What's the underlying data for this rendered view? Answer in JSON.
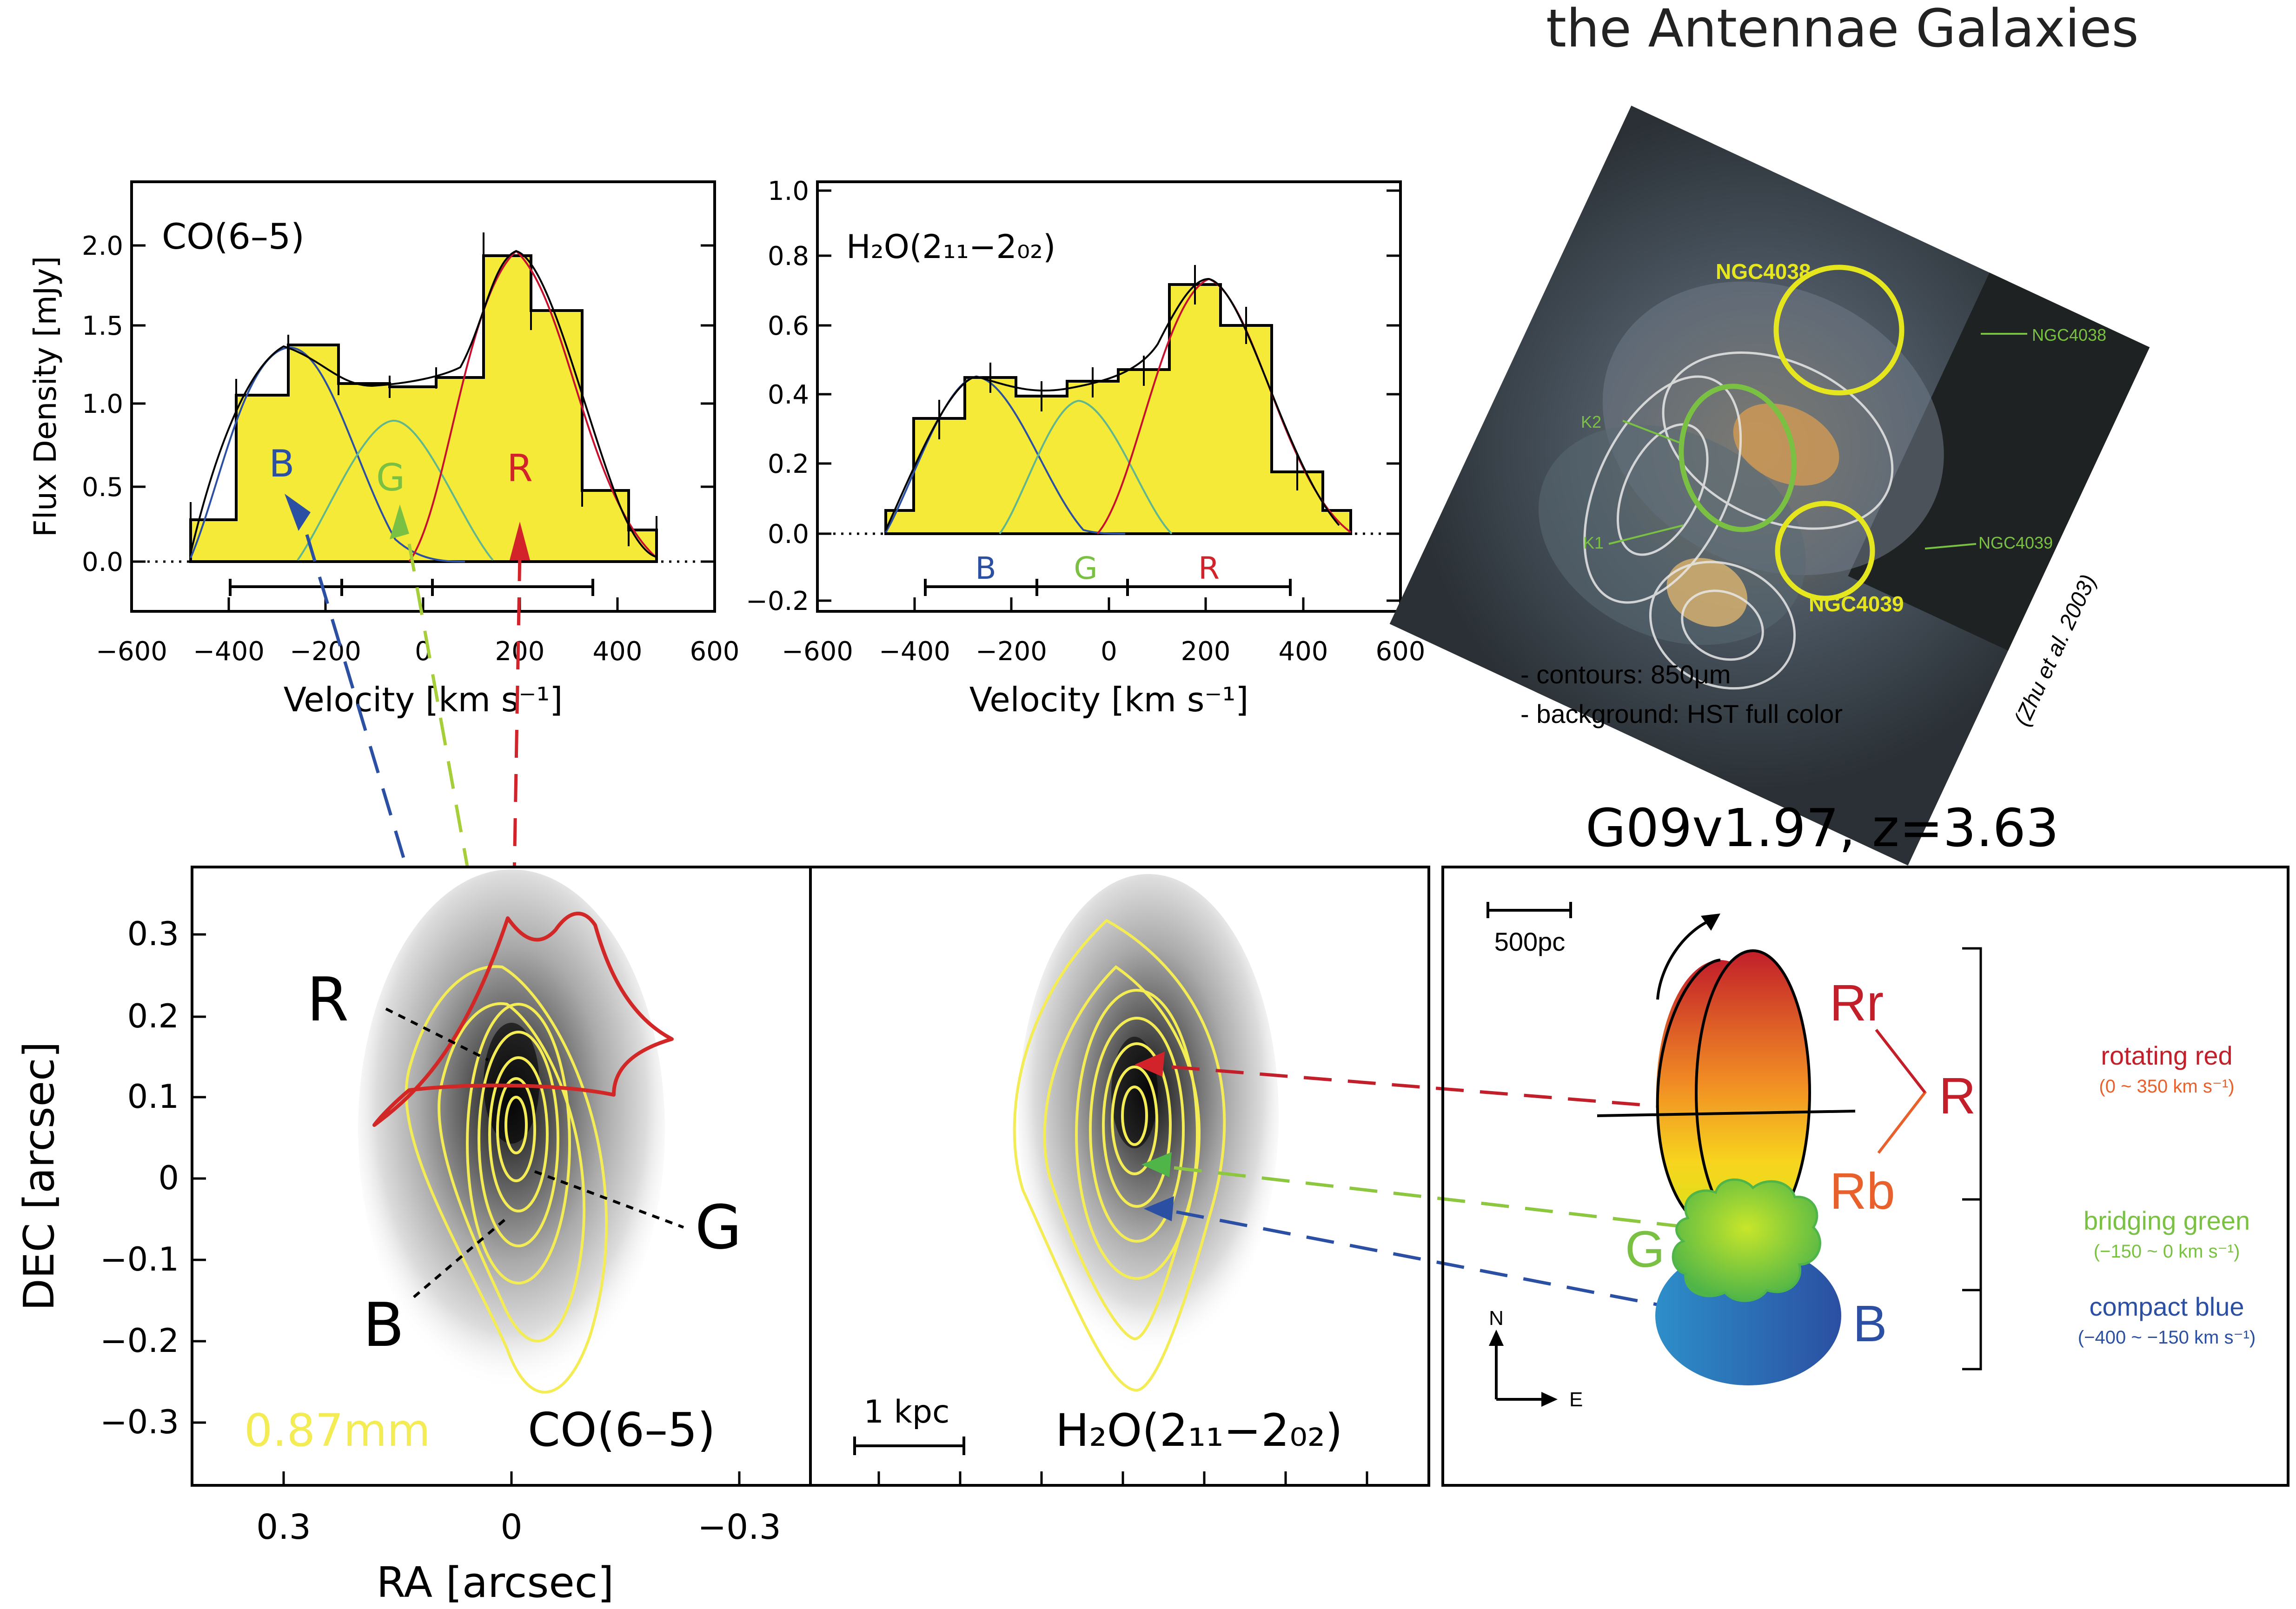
{
  "spectrum_co": {
    "label": "CO(6–5)",
    "ylabel": "Flux Density [mJy]",
    "xlabel": "Velocity [km s⁻¹]",
    "yticks": [
      "0.0",
      "0.5",
      "1.0",
      "1.5",
      "2.0"
    ],
    "xticks": [
      "−600",
      "−400",
      "−200",
      "0",
      "200",
      "400",
      "600"
    ],
    "comp_labels": [
      "B",
      "G",
      "R"
    ]
  },
  "spectrum_h2o": {
    "label": "H₂O(2₁₁−2₀₂)",
    "xlabel": "Velocity [km s⁻¹]",
    "yticks": [
      "−0.2",
      "0.0",
      "0.2",
      "0.4",
      "0.6",
      "0.8",
      "1.0"
    ],
    "xticks": [
      "−600",
      "−400",
      "−200",
      "0",
      "200",
      "400",
      "600"
    ],
    "comp_labels": [
      "B",
      "G",
      "R"
    ]
  },
  "antennae": {
    "title": "the Antennae Galaxies",
    "labels": {
      "ngc4038_yellow": "NGC4038",
      "ngc4038_green": "NGC4038",
      "ngc4039_yellow": "NGC4039",
      "ngc4039_green": "NGC4039",
      "k1": "K1",
      "k2": "K2"
    },
    "notes": [
      "- contours: 850μm",
      "- background: HST full color"
    ],
    "credit": "(Zhu et al. 2003)"
  },
  "map_co": {
    "ylabel": "DEC [arcsec]",
    "xlabel": "RA [arcsec]",
    "yticks": [
      "0.3",
      "0.2",
      "0.1",
      "0",
      "−0.1",
      "−0.2",
      "−0.3"
    ],
    "xticks": [
      "0.3",
      "0",
      "−0.3"
    ],
    "points": [
      "R",
      "G",
      "B"
    ],
    "continuum_label": "0.87mm",
    "line_label": "CO(6–5)"
  },
  "map_h2o": {
    "scalebar": "1 kpc",
    "line_label": "H₂O(2₁₁−2₀₂)"
  },
  "model": {
    "title": "G09v1.97,  z=3.63",
    "scalebar": "500pc",
    "labels": {
      "rr": "Rr",
      "rb": "Rb",
      "r": "R",
      "g": "G",
      "b": "B"
    },
    "components": [
      {
        "name": "rotating red",
        "range": "(0 ~ 350 km s⁻¹)",
        "color": "#d2232a"
      },
      {
        "name": "bridging green",
        "range": "(−150 ~ 0 km s⁻¹)",
        "color": "#7ac143"
      },
      {
        "name": "compact blue",
        "range": "(−400 ~ −150 km s⁻¹)",
        "color": "#2b4fa2"
      }
    ],
    "compass": {
      "n": "N",
      "e": "E"
    }
  }
}
